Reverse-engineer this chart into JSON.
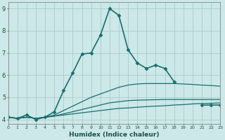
{
  "xlabel": "Humidex (Indice chaleur)",
  "xlim": [
    0,
    23
  ],
  "ylim": [
    3.8,
    9.3
  ],
  "yticks": [
    4,
    5,
    6,
    7,
    8,
    9
  ],
  "xticks": [
    0,
    1,
    2,
    3,
    4,
    5,
    6,
    7,
    8,
    9,
    10,
    11,
    12,
    13,
    14,
    15,
    16,
    17,
    18,
    19,
    20,
    21,
    22,
    23
  ],
  "background_color": "#cce8e8",
  "grid_color": "#aacccc",
  "line_color": "#1a6e6e",
  "series": [
    {
      "x": [
        0,
        1,
        2,
        3,
        4,
        5,
        6,
        7,
        8,
        9,
        10,
        11,
        12,
        13,
        14,
        15,
        16,
        17,
        18,
        19,
        20,
        21,
        22,
        23
      ],
      "y": [
        4.1,
        4.05,
        4.1,
        4.05,
        4.1,
        4.15,
        4.2,
        4.25,
        4.3,
        4.35,
        4.4,
        4.45,
        4.5,
        4.52,
        4.55,
        4.58,
        4.6,
        4.62,
        4.65,
        4.67,
        4.7,
        4.72,
        4.73,
        4.75
      ],
      "marker": null,
      "linewidth": 0.9
    },
    {
      "x": [
        0,
        1,
        2,
        3,
        4,
        5,
        6,
        7,
        8,
        9,
        10,
        11,
        12,
        13,
        14,
        15,
        16,
        17,
        18,
        19,
        20,
        21,
        22,
        23
      ],
      "y": [
        4.1,
        4.05,
        4.1,
        4.05,
        4.1,
        4.15,
        4.25,
        4.35,
        4.45,
        4.55,
        4.65,
        4.75,
        4.8,
        4.85,
        4.87,
        4.88,
        4.89,
        4.9,
        4.9,
        4.9,
        4.9,
        4.9,
        4.9,
        4.9
      ],
      "marker": null,
      "linewidth": 0.9
    },
    {
      "x": [
        0,
        1,
        2,
        3,
        4,
        5,
        6,
        7,
        8,
        9,
        10,
        11,
        12,
        13,
        14,
        15,
        16,
        17,
        18,
        19,
        20,
        21,
        22,
        23
      ],
      "y": [
        4.1,
        4.05,
        4.1,
        4.05,
        4.1,
        4.2,
        4.4,
        4.6,
        4.8,
        5.0,
        5.15,
        5.3,
        5.45,
        5.55,
        5.6,
        5.62,
        5.62,
        5.62,
        5.62,
        5.6,
        5.58,
        5.55,
        5.53,
        5.5
      ],
      "marker": null,
      "linewidth": 0.9
    },
    {
      "x": [
        0,
        1,
        2,
        3,
        4,
        5,
        6,
        7,
        8,
        9,
        10,
        11,
        12,
        13,
        14,
        15,
        16,
        17,
        18,
        19,
        20,
        21,
        22,
        23
      ],
      "y": [
        4.1,
        4.05,
        4.2,
        4.0,
        4.1,
        4.35,
        5.3,
        6.1,
        6.95,
        7.0,
        7.8,
        9.0,
        8.7,
        7.15,
        6.55,
        6.3,
        6.45,
        6.3,
        5.7,
        null,
        null,
        4.65,
        4.65,
        4.65
      ],
      "marker": "D",
      "marker_size": 2.5,
      "linewidth": 1.2
    }
  ]
}
